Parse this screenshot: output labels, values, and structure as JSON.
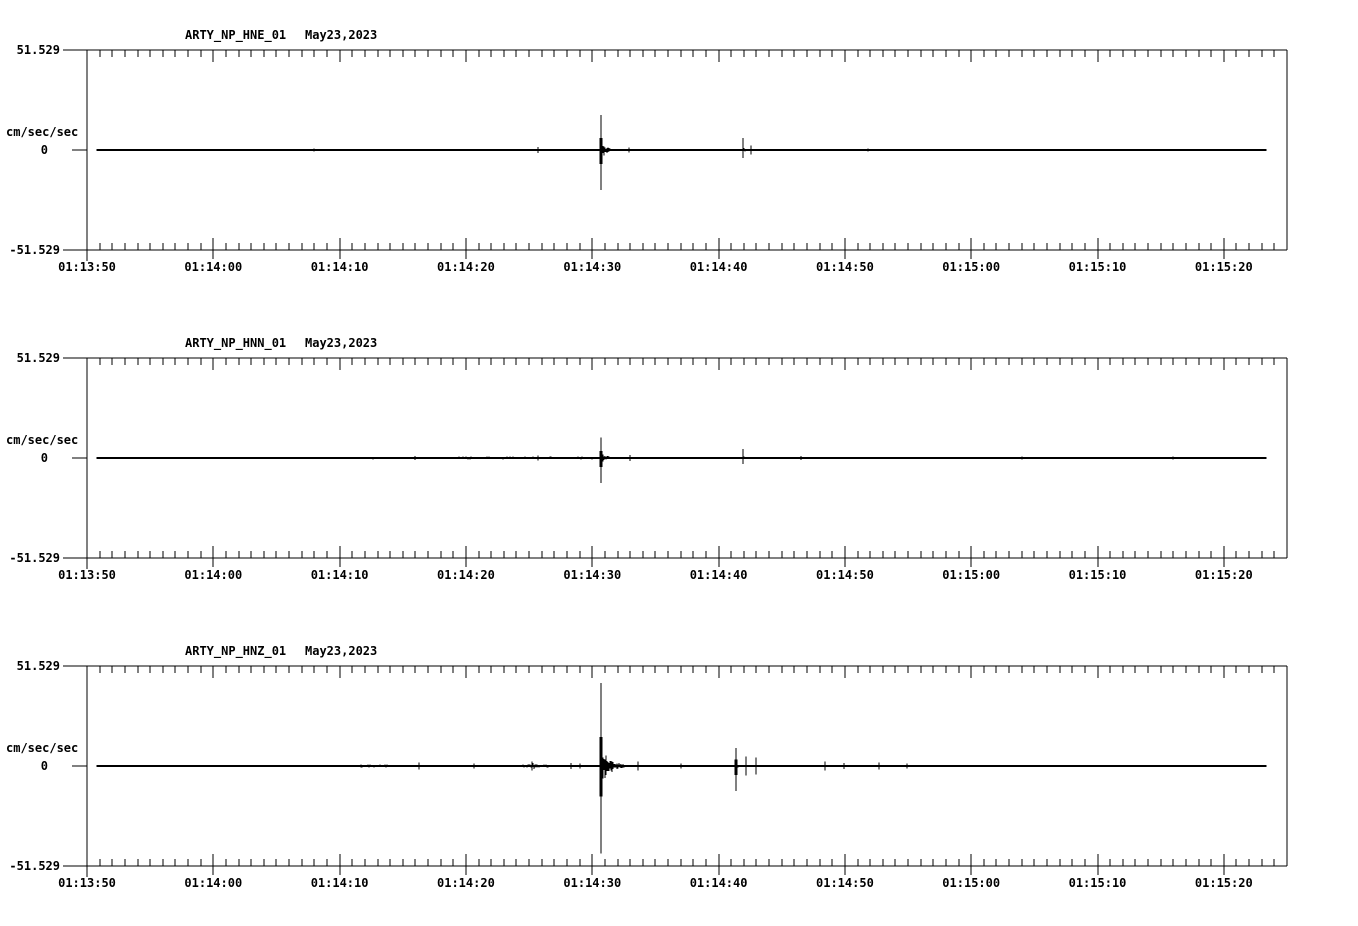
{
  "page": {
    "background": "#ffffff",
    "foreground": "#000000"
  },
  "chart_data": {
    "type": "line",
    "subtype": "seismogram-3-panel",
    "grid": false,
    "legend": false,
    "x_axis": {
      "start": "01:13:50",
      "end": "01:15:25",
      "duration_seconds": 95,
      "major_tick_interval_s": 10,
      "minor_tick_interval_s": 1,
      "ticklabels": [
        "01:13:50",
        "01:14:00",
        "01:14:10",
        "01:14:20",
        "01:14:30",
        "01:14:40",
        "01:14:50",
        "01:15:00",
        "01:15:10",
        "01:15:20"
      ]
    },
    "y_axis": {
      "unit": "cm/sec/sec",
      "max_label": "51.529",
      "zero_label": "0",
      "min_label": "-51.529",
      "ylim": [
        -51.529,
        51.529
      ]
    },
    "trace_t_start": 0.8,
    "trace_t_end": 93.3,
    "channels": [
      {
        "station": "ARTY_NP_HNE_01",
        "date": "May23,2023",
        "seed": 11,
        "noise_amp": 0.12,
        "noise_patches": [
          {
            "t0": 12.5,
            "t1": 17.5,
            "amp": 0.35
          },
          {
            "t0": 25.0,
            "t1": 28.0,
            "amp": 0.3
          },
          {
            "t0": 33.0,
            "t1": 36.0,
            "amp": 0.3
          }
        ],
        "spikes": [
          {
            "t": 18.0,
            "up": 0.8,
            "down": 0.8
          },
          {
            "t": 35.7,
            "up": 1.6,
            "down": 1.6
          },
          {
            "t": 40.7,
            "up": 18.0,
            "down": 20.5,
            "coda_amp": 4.5,
            "coda_tau": 0.5
          },
          {
            "t": 42.9,
            "up": 1.2,
            "down": 1.2
          },
          {
            "t": 51.9,
            "up": 6.2,
            "down": 4.2,
            "coda_amp": 1.4,
            "coda_tau": 0.3
          },
          {
            "t": 52.6,
            "up": 2.2,
            "down": 2.2
          },
          {
            "t": 61.8,
            "up": 0.9,
            "down": 0.9
          }
        ]
      },
      {
        "station": "ARTY_NP_HNN_01",
        "date": "May23,2023",
        "seed": 22,
        "noise_amp": 0.45,
        "noise_patches": [
          {
            "t0": 13.0,
            "t1": 18.0,
            "amp": 0.6
          },
          {
            "t0": 20.0,
            "t1": 27.0,
            "amp": 0.65
          },
          {
            "t0": 29.0,
            "t1": 40.0,
            "amp": 0.7
          },
          {
            "t0": 43.0,
            "t1": 53.0,
            "amp": 0.6
          },
          {
            "t0": 55.0,
            "t1": 68.0,
            "amp": 0.6
          },
          {
            "t0": 70.0,
            "t1": 93.0,
            "amp": 0.5
          }
        ],
        "spikes": [
          {
            "t": 26.0,
            "up": 1.0,
            "down": 1.0
          },
          {
            "t": 35.7,
            "up": 1.2,
            "down": 1.2
          },
          {
            "t": 40.7,
            "up": 10.5,
            "down": 13.0,
            "coda_amp": 3.0,
            "coda_tau": 0.5
          },
          {
            "t": 43.0,
            "up": 1.5,
            "down": 1.5
          },
          {
            "t": 51.9,
            "up": 4.6,
            "down": 3.2,
            "coda_amp": 1.2,
            "coda_tau": 0.25
          },
          {
            "t": 56.5,
            "up": 1.0,
            "down": 1.0
          },
          {
            "t": 74.0,
            "up": 0.9,
            "down": 0.9
          },
          {
            "t": 86.0,
            "up": 0.9,
            "down": 0.9
          }
        ]
      },
      {
        "station": "ARTY_NP_HNZ_01",
        "date": "May23,2023",
        "seed": 33,
        "noise_amp": 0.2,
        "noise_patches": [
          {
            "t0": 21.5,
            "t1": 24.0,
            "amp": 0.7
          },
          {
            "t0": 26.0,
            "t1": 29.0,
            "amp": 0.5
          },
          {
            "t0": 34.5,
            "t1": 36.5,
            "amp": 0.9
          }
        ],
        "spikes": [
          {
            "t": 26.3,
            "up": 1.8,
            "down": 1.8
          },
          {
            "t": 30.6,
            "up": 1.2,
            "down": 1.2
          },
          {
            "t": 35.2,
            "up": 2.2,
            "down": 2.2,
            "coda_amp": 2.0,
            "coda_tau": 0.5
          },
          {
            "t": 38.3,
            "up": 1.6,
            "down": 1.6
          },
          {
            "t": 39.0,
            "up": 1.2,
            "down": 1.2
          },
          {
            "t": 40.7,
            "up": 42.8,
            "down": 45.2,
            "coda_amp": 10.5,
            "coda_tau": 0.75
          },
          {
            "t": 43.6,
            "up": 2.3,
            "down": 2.3
          },
          {
            "t": 47.0,
            "up": 1.4,
            "down": 1.4
          },
          {
            "t": 51.4,
            "up": 9.4,
            "down": 13.0,
            "coda_amp": 2.0,
            "coda_tau": 0.2
          },
          {
            "t": 52.2,
            "up": 5.0,
            "down": 5.0
          },
          {
            "t": 53.0,
            "up": 4.4,
            "down": 4.4
          },
          {
            "t": 58.4,
            "up": 2.4,
            "down": 2.4
          },
          {
            "t": 59.9,
            "up": 1.6,
            "down": 1.6
          },
          {
            "t": 62.7,
            "up": 1.8,
            "down": 1.8
          },
          {
            "t": 64.9,
            "up": 1.2,
            "down": 1.2
          }
        ]
      }
    ]
  }
}
